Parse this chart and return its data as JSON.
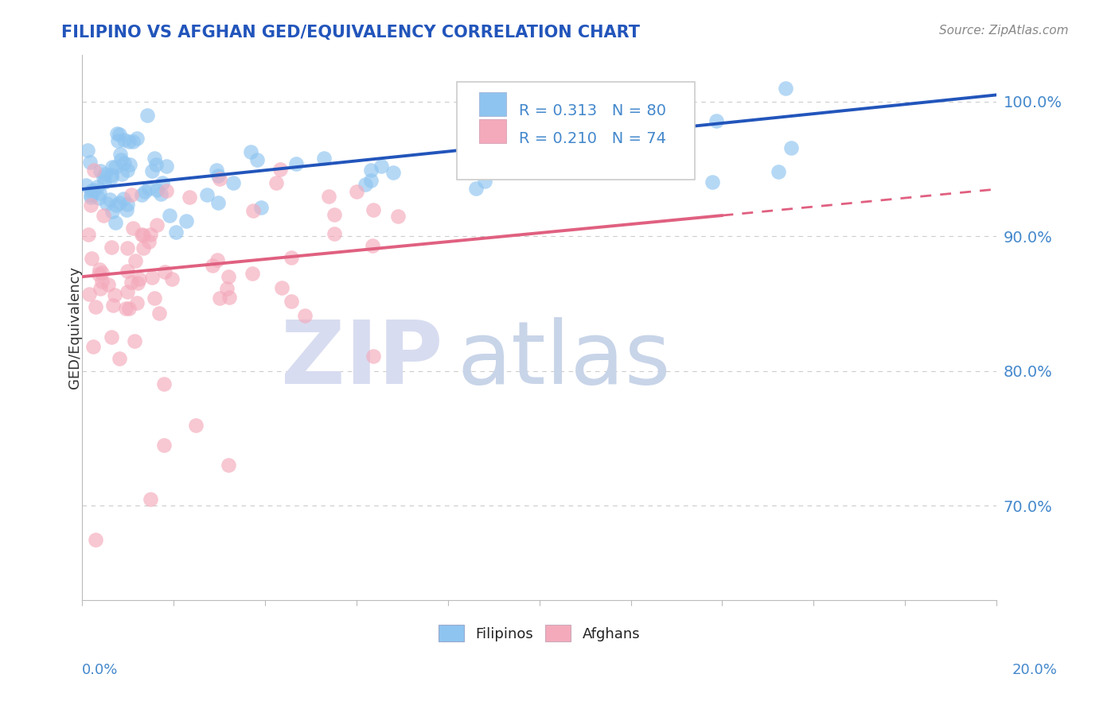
{
  "title": "FILIPINO VS AFGHAN GED/EQUIVALENCY CORRELATION CHART",
  "source": "Source: ZipAtlas.com",
  "ylabel": "GED/Equivalency",
  "y_ticks": [
    70.0,
    80.0,
    90.0,
    100.0
  ],
  "y_tick_labels": [
    "70.0%",
    "80.0%",
    "90.0%",
    "100.0%"
  ],
  "xmin": 0.0,
  "xmax": 20.0,
  "ymin": 63.0,
  "ymax": 103.5,
  "blue_R": 0.313,
  "blue_N": 80,
  "pink_R": 0.21,
  "pink_N": 74,
  "blue_color": "#8EC4F0",
  "pink_color": "#F4AABB",
  "blue_line_color": "#2255BB",
  "pink_line_color": "#E06080",
  "title_color": "#2255BB",
  "axis_label_color": "#4488CC",
  "grid_color": "#CCCCCC",
  "blue_trend_x0": 0.0,
  "blue_trend_y0": 93.5,
  "blue_trend_x1": 20.0,
  "blue_trend_y1": 100.5,
  "pink_trend_x0": 0.0,
  "pink_trend_y0": 87.0,
  "pink_trend_x1": 20.0,
  "pink_trend_y1": 93.5,
  "pink_solid_end_x": 14.0,
  "pink_dashed_start_x": 14.0,
  "watermark_zip_color": "#D8DCF0",
  "watermark_atlas_color": "#C8D4E8"
}
